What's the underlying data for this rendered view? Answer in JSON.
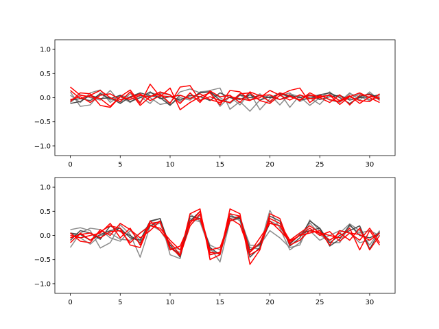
{
  "chart_data": [
    {
      "type": "line",
      "title": "",
      "xlabel": "",
      "ylabel": "",
      "xlim": [
        -1.55,
        32.55
      ],
      "ylim": [
        -1.2,
        1.2
      ],
      "xticks": [
        0,
        5,
        10,
        15,
        20,
        25,
        30
      ],
      "yticks": [
        -1.0,
        -0.5,
        0.0,
        0.5,
        1.0
      ],
      "tick_labels_x": [
        "0",
        "5",
        "10",
        "15",
        "20",
        "25",
        "30"
      ],
      "tick_labels_y": [
        "−1.0",
        "−0.5",
        "0.0",
        "0.5",
        "1.0"
      ],
      "grid": false,
      "colors": {
        "gray": "#808080",
        "dark": "#3a3a3a",
        "red": "#ff0000"
      },
      "series": [
        {
          "color": "gray",
          "values": [
            0.12,
            -0.18,
            -0.15,
            0.1,
            -0.05,
            0.02,
            -0.1,
            0.05,
            0.0,
            -0.14,
            -0.1,
            0.12,
            0.18,
            0.1,
            0.15,
            0.2,
            -0.24,
            -0.08,
            -0.28,
            -0.05,
            0.06,
            -0.15,
            0.08,
            0.02,
            -0.16,
            0.0,
            0.12,
            -0.08,
            0.1,
            -0.05,
            0.12,
            -0.06
          ]
        },
        {
          "color": "gray",
          "values": [
            0.05,
            -0.1,
            0.1,
            0.16,
            -0.1,
            0.05,
            0.0,
            -0.08,
            0.1,
            0.06,
            -0.15,
            0.0,
            -0.05,
            0.12,
            0.14,
            -0.18,
            0.02,
            -0.15,
            0.1,
            -0.25,
            -0.02,
            0.1,
            -0.2,
            0.05,
            0.0,
            -0.14,
            0.08,
            0.02,
            -0.02,
            0.08,
            -0.04,
            0.0
          ]
        },
        {
          "color": "gray",
          "values": [
            -0.1,
            0.06,
            0.0,
            -0.05,
            0.15,
            -0.1,
            0.08,
            0.02,
            -0.12,
            0.1,
            0.05,
            -0.08,
            0.02,
            -0.06,
            0.12,
            0.0,
            -0.12,
            0.05,
            -0.05,
            0.08,
            -0.1,
            0.04,
            0.1,
            -0.08,
            0.02,
            0.06,
            -0.05,
            -0.1,
            0.08,
            0.02,
            -0.06,
            0.04
          ]
        },
        {
          "color": "dark",
          "values": [
            -0.12,
            -0.08,
            0.05,
            -0.02,
            0.0,
            -0.12,
            0.02,
            0.1,
            0.04,
            0.0,
            -0.16,
            0.05,
            -0.02,
            0.1,
            0.12,
            -0.05,
            -0.1,
            0.06,
            0.0,
            0.04,
            0.0,
            0.08,
            0.02,
            -0.04,
            -0.02,
            0.06,
            0.1,
            0.0,
            -0.12,
            0.02,
            0.08,
            -0.02
          ]
        },
        {
          "color": "dark",
          "values": [
            -0.05,
            -0.02,
            -0.06,
            0.08,
            -0.02,
            0.05,
            -0.08,
            0.0,
            0.12,
            -0.02,
            0.02,
            -0.05,
            0.05,
            0.02,
            -0.06,
            0.1,
            0.0,
            -0.04,
            0.06,
            -0.05,
            0.02,
            -0.04,
            0.05,
            0.0,
            0.06,
            -0.04,
            0.02,
            0.05,
            -0.05,
            0.0,
            0.02,
            0.06
          ]
        },
        {
          "color": "red",
          "values": [
            0.22,
            0.05,
            0.02,
            -0.02,
            -0.18,
            0.02,
            0.16,
            -0.12,
            0.28,
            0.02,
            0.2,
            -0.25,
            -0.1,
            0.02,
            0.1,
            -0.15,
            0.15,
            0.12,
            -0.05,
            0.0,
            0.15,
            0.05,
            0.15,
            0.2,
            -0.1,
            0.05,
            -0.04,
            -0.08,
            0.02,
            -0.06,
            -0.08,
            0.08
          ]
        },
        {
          "color": "red",
          "values": [
            -0.08,
            0.1,
            0.08,
            -0.16,
            -0.2,
            0.02,
            -0.04,
            0.05,
            0.02,
            0.08,
            -0.12,
            0.22,
            0.25,
            -0.06,
            0.02,
            -0.06,
            -0.1,
            0.08,
            0.1,
            -0.06,
            -0.12,
            0.05,
            -0.05,
            0.06,
            -0.02,
            0.0,
            0.06,
            -0.06,
            0.04,
            -0.12,
            0.02,
            0.0
          ]
        },
        {
          "color": "red",
          "values": [
            0.15,
            -0.02,
            0.05,
            0.15,
            0.0,
            -0.08,
            0.12,
            -0.16,
            0.02,
            0.12,
            0.06,
            -0.12,
            0.1,
            -0.1,
            0.14,
            0.02,
            0.05,
            -0.1,
            0.12,
            0.04,
            0.06,
            -0.04,
            0.02,
            -0.04,
            0.05,
            0.02,
            0.05,
            -0.14,
            0.02,
            0.1,
            0.0,
            -0.1
          ]
        },
        {
          "color": "red",
          "values": [
            -0.04,
            0.02,
            -0.1,
            0.05,
            0.08,
            -0.04,
            0.0,
            0.08,
            -0.06,
            0.04,
            0.02,
            0.05,
            -0.02,
            0.08,
            -0.04,
            -0.1,
            0.02,
            -0.02,
            -0.06,
            0.05,
            -0.08,
            0.1,
            0.04,
            -0.06,
            0.1,
            0.0,
            -0.1,
            0.06,
            -0.15,
            0.05,
            0.06,
            -0.04
          ]
        }
      ]
    },
    {
      "type": "line",
      "title": "",
      "xlabel": "",
      "ylabel": "",
      "xlim": [
        -1.55,
        32.55
      ],
      "ylim": [
        -1.2,
        1.2
      ],
      "xticks": [
        0,
        5,
        10,
        15,
        20,
        25,
        30
      ],
      "yticks": [
        -1.0,
        -0.5,
        0.0,
        0.5,
        1.0
      ],
      "tick_labels_x": [
        "0",
        "5",
        "10",
        "15",
        "20",
        "25",
        "30"
      ],
      "tick_labels_y": [
        "−1.0",
        "−0.5",
        "0.0",
        "0.5",
        "1.0"
      ],
      "grid": false,
      "colors": {
        "gray": "#808080",
        "dark": "#3a3a3a",
        "red": "#ff0000"
      },
      "series": [
        {
          "color": "gray",
          "values": [
            0.12,
            0.16,
            0.1,
            -0.26,
            -0.15,
            0.22,
            0.02,
            -0.45,
            0.2,
            0.25,
            -0.28,
            -0.35,
            0.2,
            0.42,
            -0.25,
            -0.55,
            0.3,
            0.35,
            -0.2,
            -0.22,
            0.52,
            0.15,
            -0.3,
            -0.15,
            0.32,
            0.1,
            -0.1,
            0.05,
            0.24,
            0.1,
            -0.2,
            0.1
          ]
        },
        {
          "color": "gray",
          "values": [
            -0.25,
            0.05,
            0.15,
            0.12,
            -0.05,
            -0.12,
            0.1,
            -0.1,
            0.28,
            0.35,
            -0.4,
            -0.48,
            0.44,
            0.3,
            -0.2,
            -0.3,
            0.44,
            0.3,
            -0.3,
            -0.2,
            0.1,
            -0.05,
            -0.25,
            -0.2,
            0.26,
            0.02,
            -0.15,
            -0.15,
            0.2,
            0.05,
            0.1,
            0.0
          ]
        },
        {
          "color": "gray",
          "values": [
            0.05,
            -0.05,
            -0.18,
            0.0,
            0.05,
            -0.08,
            -0.1,
            0.05,
            0.22,
            0.1,
            -0.2,
            -0.3,
            0.35,
            0.28,
            -0.3,
            -0.4,
            0.35,
            0.4,
            -0.25,
            -0.28,
            0.3,
            0.2,
            -0.1,
            0.05,
            0.1,
            -0.1,
            0.0,
            0.1,
            0.05,
            -0.15,
            -0.1,
            0.05
          ]
        },
        {
          "color": "dark",
          "values": [
            0.05,
            0.02,
            -0.1,
            0.02,
            0.1,
            0.15,
            -0.05,
            -0.1,
            0.3,
            0.35,
            -0.25,
            -0.4,
            0.4,
            0.35,
            -0.25,
            -0.4,
            0.4,
            0.35,
            -0.45,
            -0.25,
            0.4,
            0.3,
            -0.22,
            -0.05,
            0.3,
            0.15,
            -0.15,
            0.0,
            0.1,
            0.2,
            -0.28,
            0.08
          ]
        },
        {
          "color": "dark",
          "values": [
            -0.1,
            0.1,
            0.05,
            -0.08,
            0.2,
            0.08,
            0.0,
            -0.15,
            0.2,
            0.3,
            -0.2,
            -0.45,
            0.3,
            0.5,
            -0.4,
            -0.35,
            0.3,
            0.38,
            -0.3,
            -0.18,
            0.25,
            0.2,
            -0.18,
            0.02,
            0.1,
            0.15,
            -0.22,
            -0.08,
            0.22,
            0.0,
            -0.05,
            0.05
          ]
        },
        {
          "color": "red",
          "values": [
            0.0,
            -0.05,
            0.0,
            0.05,
            0.25,
            -0.05,
            0.15,
            -0.2,
            0.3,
            0.1,
            -0.15,
            -0.4,
            0.45,
            0.55,
            -0.5,
            -0.4,
            0.55,
            0.45,
            -0.6,
            -0.3,
            0.45,
            0.35,
            -0.2,
            -0.1,
            0.1,
            0.05,
            0.0,
            -0.05,
            0.15,
            -0.3,
            0.1,
            -0.2
          ]
        },
        {
          "color": "red",
          "values": [
            -0.15,
            0.05,
            -0.1,
            0.08,
            0.2,
            0.15,
            -0.2,
            -0.25,
            0.25,
            0.28,
            -0.25,
            -0.42,
            0.2,
            0.45,
            -0.4,
            -0.35,
            0.45,
            0.4,
            -0.4,
            -0.28,
            0.35,
            0.25,
            -0.1,
            0.05,
            0.2,
            0.05,
            -0.1,
            0.05,
            -0.1,
            0.15,
            -0.3,
            0.0
          ]
        },
        {
          "color": "red",
          "values": [
            0.05,
            -0.12,
            -0.15,
            0.12,
            0.0,
            0.25,
            0.12,
            -0.05,
            0.1,
            0.3,
            -0.3,
            -0.22,
            0.25,
            0.5,
            -0.35,
            -0.38,
            0.35,
            0.22,
            -0.35,
            -0.05,
            0.25,
            0.2,
            -0.15,
            0.0,
            0.05,
            0.1,
            -0.2,
            0.1,
            0.05,
            -0.1,
            0.15,
            -0.15
          ]
        },
        {
          "color": "red",
          "values": [
            -0.05,
            0.02,
            0.05,
            -0.05,
            0.08,
            0.1,
            -0.15,
            0.05,
            0.2,
            0.15,
            -0.1,
            -0.3,
            0.3,
            0.35,
            -0.3,
            -0.25,
            0.3,
            0.4,
            -0.35,
            -0.15,
            0.3,
            0.1,
            -0.12,
            0.0,
            0.15,
            0.0,
            0.08,
            -0.12,
            0.05,
            0.02,
            -0.1,
            0.05
          ]
        }
      ]
    }
  ]
}
